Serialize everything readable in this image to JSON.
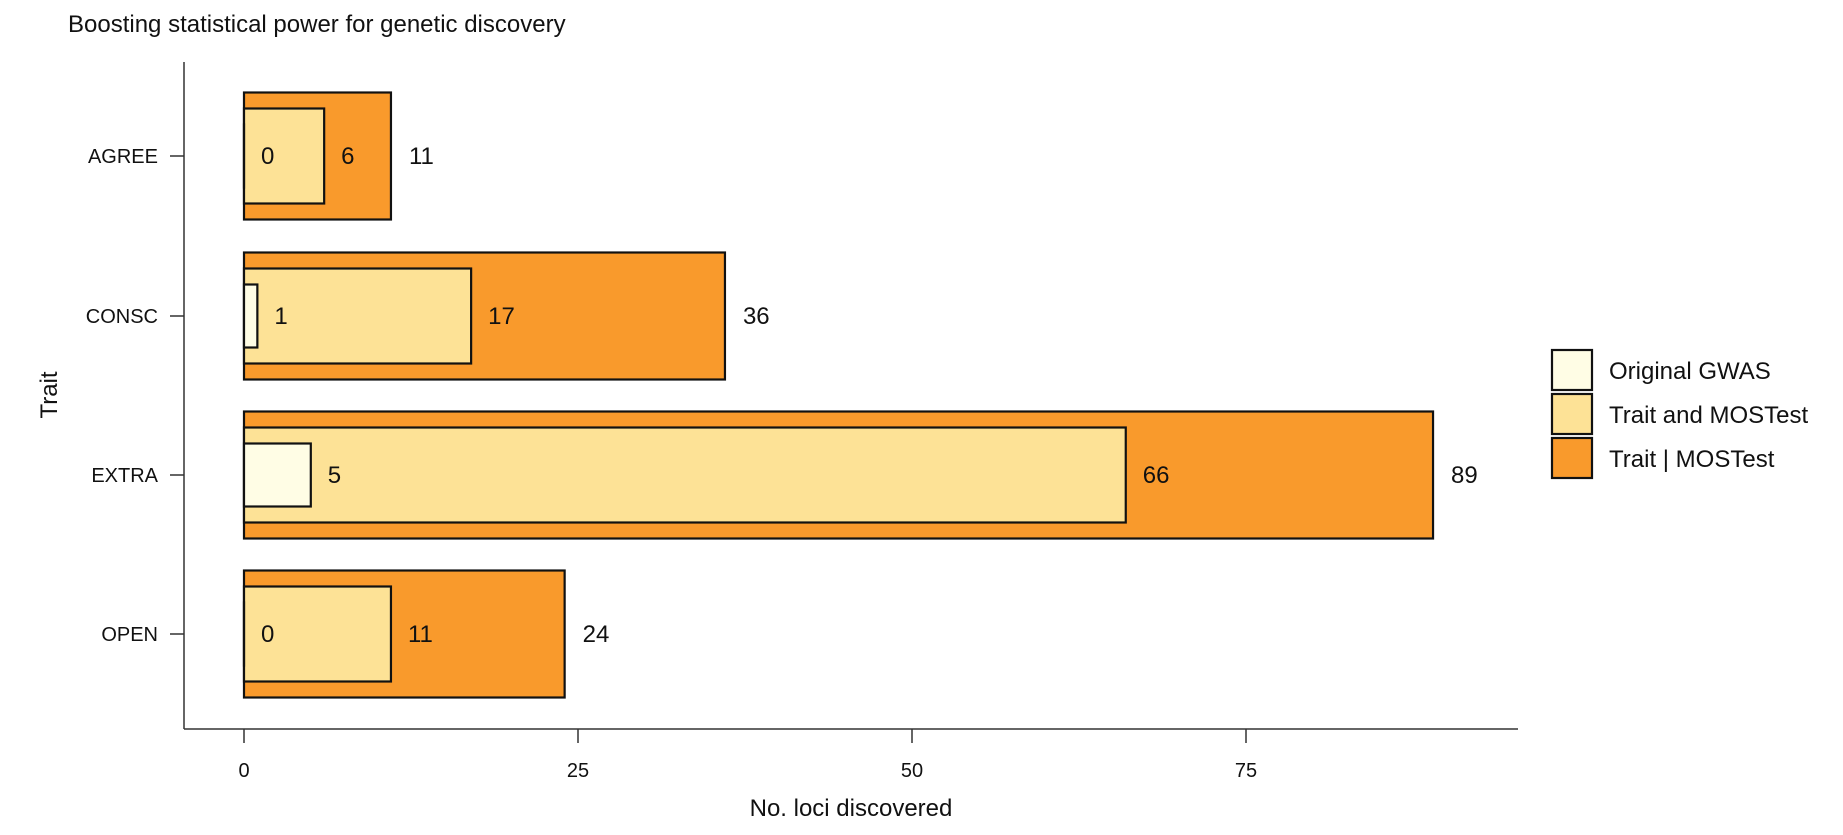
{
  "chart_data": {
    "type": "bar",
    "orientation": "horizontal",
    "title": "Boosting statistical power for genetic discovery",
    "xlabel": "No. loci discovered",
    "ylabel": "Trait",
    "categories": [
      "AGREE",
      "CONSC",
      "EXTRA",
      "OPEN"
    ],
    "series": [
      {
        "name": "Trait | MOSTest",
        "values": [
          11,
          36,
          89,
          24
        ],
        "color": "#f99a2c"
      },
      {
        "name": "Trait and MOSTest",
        "values": [
          6,
          17,
          66,
          11
        ],
        "color": "#fde296"
      },
      {
        "name": "Original GWAS",
        "values": [
          0,
          1,
          5,
          0
        ],
        "color": "#fffde5"
      }
    ],
    "xlim": [
      0,
      95
    ],
    "xticks": [
      0,
      25,
      50,
      75
    ],
    "legend_position": "right",
    "legend_order": [
      "Original GWAS",
      "Trait and MOSTest",
      "Trait | MOSTest"
    ],
    "grid": false
  }
}
